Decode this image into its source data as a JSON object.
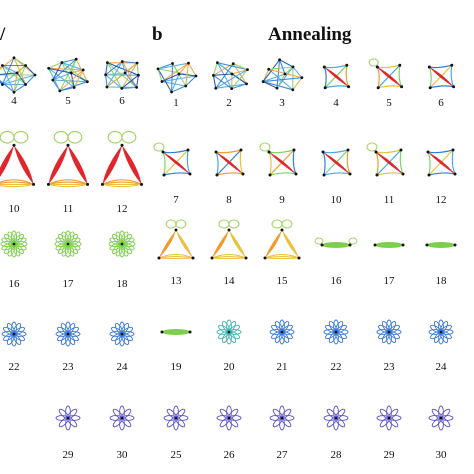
{
  "panel_b": {
    "letter": "b",
    "title": "Annealing"
  },
  "panel_a": {
    "edge_letter": "/"
  },
  "panel_a_rows": [
    {
      "labels": [
        "4",
        "5",
        "6"
      ],
      "kind": "mesh"
    },
    {
      "labels": [
        "10",
        "11",
        "12"
      ],
      "kind": "bow"
    },
    {
      "labels": [
        "16",
        "17",
        "18"
      ],
      "kind": "flower-green"
    },
    {
      "labels": [
        "22",
        "23",
        "24"
      ],
      "kind": "flower-blue"
    },
    {
      "labels": [
        "29",
        "30"
      ],
      "kind": "flower-blue"
    }
  ],
  "panel_b_rows": [
    {
      "labels": [
        "1",
        "2",
        "3",
        "4",
        "5",
        "6"
      ],
      "kind": "mesh"
    },
    {
      "labels": [
        "7",
        "8",
        "9",
        "10",
        "11",
        "12"
      ],
      "kind": "knot"
    },
    {
      "labels": [
        "13",
        "14",
        "15",
        "16",
        "17",
        "18"
      ],
      "kind": "triangle-then-link"
    },
    {
      "labels": [
        "19",
        "20",
        "21",
        "22",
        "23",
        "24"
      ],
      "kind": "link-then-flower"
    },
    {
      "labels": [
        "25",
        "26",
        "27",
        "28",
        "29",
        "30"
      ],
      "kind": "flower-blue"
    }
  ],
  "colors": {
    "mesh_edges": [
      "#2f7fd8",
      "#4aa8e8",
      "#7fd36a",
      "#f0a23a",
      "#1b4fb0"
    ],
    "bow_red": "#e0262a",
    "bow_orange": "#f39a2c",
    "bow_yellow": "#e8c23a",
    "loop_green": "#a6d46a",
    "flower_green": "#7ccf4a",
    "flower_teal": "#3cb8b0",
    "flower_blue": "#3a78d8",
    "flower_purple": "#5a52c8",
    "node": "#111111"
  }
}
